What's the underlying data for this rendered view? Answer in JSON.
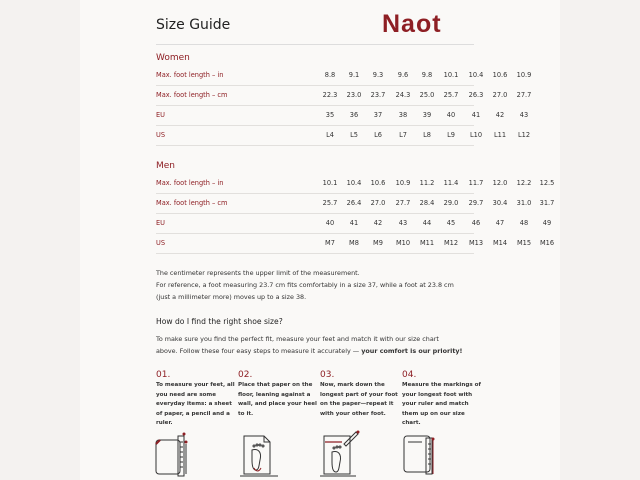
{
  "header": {
    "title": "Size Guide",
    "logo": "Naot"
  },
  "colors": {
    "accent": "#8e1f24"
  },
  "women": {
    "heading": "Women",
    "rows": [
      {
        "label": "Max. foot length – in",
        "values": [
          "8.8",
          "9.1",
          "9.3",
          "9.6",
          "9.8",
          "10.1",
          "10.4",
          "10.6",
          "10.9"
        ]
      },
      {
        "label": "Max. foot length – cm",
        "values": [
          "22.3",
          "23.0",
          "23.7",
          "24.3",
          "25.0",
          "25.7",
          "26.3",
          "27.0",
          "27.7"
        ]
      },
      {
        "label": "EU",
        "values": [
          "35",
          "36",
          "37",
          "38",
          "39",
          "40",
          "41",
          "42",
          "43"
        ]
      },
      {
        "label": "US",
        "values": [
          "L4",
          "L5",
          "L6",
          "L7",
          "L8",
          "L9",
          "L10",
          "L11",
          "L12"
        ]
      }
    ]
  },
  "men": {
    "heading": "Men",
    "rows": [
      {
        "label": "Max. foot length – in",
        "values": [
          "10.1",
          "10.4",
          "10.6",
          "10.9",
          "11.2",
          "11.4",
          "11.7",
          "12.0",
          "12.2",
          "12.5"
        ]
      },
      {
        "label": "Max. foot length – cm",
        "values": [
          "25.7",
          "26.4",
          "27.0",
          "27.7",
          "28.4",
          "29.0",
          "29.7",
          "30.4",
          "31.0",
          "31.7"
        ]
      },
      {
        "label": "EU",
        "values": [
          "40",
          "41",
          "42",
          "43",
          "44",
          "45",
          "46",
          "47",
          "48",
          "49"
        ]
      },
      {
        "label": "US",
        "values": [
          "M7",
          "M8",
          "M9",
          "M10",
          "M11",
          "M12",
          "M13",
          "M14",
          "M15",
          "M16"
        ]
      }
    ]
  },
  "note": {
    "line1": "The centimeter represents the upper limit of the measurement.",
    "line2": "For reference, a foot measuring 23.7 cm fits comfortably in a size 37, while a foot at 23.8 cm",
    "line3": "(just a millimeter more) moves up to a size 38."
  },
  "howto": {
    "heading": "How do I find the right shoe size?",
    "line1": "To make sure you find the perfect fit, measure your feet and match it with our size chart",
    "line2_a": "above. Follow these four easy steps to measure it accurately — ",
    "line2_b": "your comfort is our priority!"
  },
  "steps": [
    {
      "num": "01.",
      "text": "To measure your feet, all you need are some everyday items: a sheet of paper, a pencil and a ruler.",
      "icon": "paper-ruler-pencil-icon"
    },
    {
      "num": "02.",
      "text": "Place that paper on the floor, leaning against a wall, and place your heel to it.",
      "icon": "foot-on-paper-icon"
    },
    {
      "num": "03.",
      "text": "Now, mark down the longest part of your foot on the paper—repeat it with your other foot.",
      "icon": "mark-foot-icon"
    },
    {
      "num": "04.",
      "text": "Measure the markings of your longest foot with your ruler and match them up on our size chart.",
      "icon": "measure-ruler-icon"
    }
  ]
}
